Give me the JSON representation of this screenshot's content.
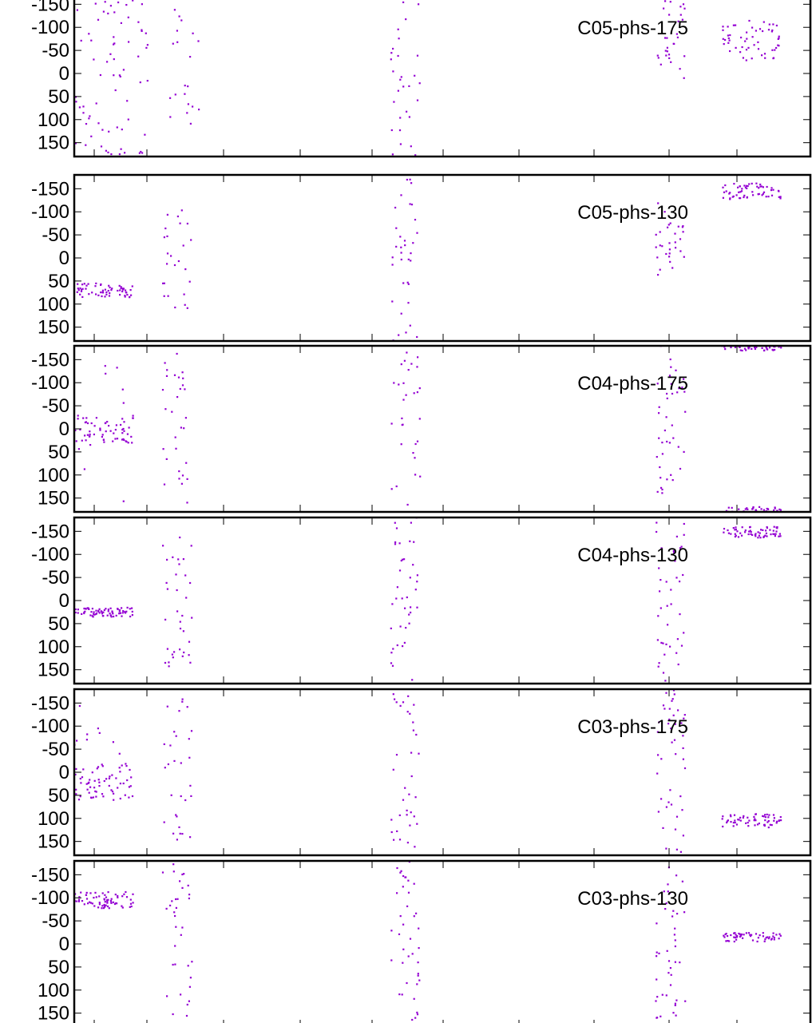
{
  "chart_data": [
    {
      "type": "scatter",
      "title": "C05-phs-175",
      "ylim": [
        180,
        -180
      ],
      "yticks": [
        -150,
        -100,
        -50,
        0,
        50,
        100,
        150
      ],
      "ytick_labels": [
        "-150",
        "-100",
        "-50",
        "0",
        "50",
        "100",
        "150"
      ],
      "xlim": [
        0,
        100
      ],
      "color": "#9400d3",
      "grid": false,
      "clusters": [
        {
          "x": [
            0,
            10
          ],
          "y_center": 0,
          "y_spread": 180,
          "count": 70
        },
        {
          "x": [
            13,
            17
          ],
          "y_center": -10,
          "y_spread": 150,
          "count": 20
        },
        {
          "x": [
            43,
            47
          ],
          "y_center": 0,
          "y_spread": 180,
          "count": 30
        },
        {
          "x": [
            79,
            83
          ],
          "y_center": -80,
          "y_spread": 90,
          "count": 30
        },
        {
          "x": [
            88,
            96
          ],
          "y_center": -70,
          "y_spread": 45,
          "count": 55
        }
      ]
    },
    {
      "type": "scatter",
      "title": "C05-phs-130",
      "ylim": [
        180,
        -180
      ],
      "yticks": [
        -150,
        -100,
        -50,
        0,
        50,
        100,
        150
      ],
      "ytick_labels": [
        "-150",
        "-100",
        "-50",
        "0",
        "50",
        "100",
        "150"
      ],
      "xlim": [
        0,
        100
      ],
      "color": "#9400d3",
      "grid": false,
      "clusters": [
        {
          "x": [
            0,
            8
          ],
          "y_center": 70,
          "y_spread": 15,
          "count": 60
        },
        {
          "x": [
            12,
            16
          ],
          "y_center": 0,
          "y_spread": 110,
          "count": 25
        },
        {
          "x": [
            43,
            47
          ],
          "y_center": 0,
          "y_spread": 180,
          "count": 35
        },
        {
          "x": [
            79,
            83
          ],
          "y_center": -40,
          "y_spread": 80,
          "count": 30
        },
        {
          "x": [
            88,
            96
          ],
          "y_center": -145,
          "y_spread": 18,
          "count": 60
        }
      ]
    },
    {
      "type": "scatter",
      "title": "C04-phs-175",
      "ylim": [
        180,
        -180
      ],
      "yticks": [
        -150,
        -100,
        -50,
        0,
        50,
        100,
        150
      ],
      "ytick_labels": [
        "-150",
        "-100",
        "-50",
        "0",
        "50",
        "100",
        "150"
      ],
      "xlim": [
        0,
        100
      ],
      "color": "#9400d3",
      "grid": false,
      "clusters": [
        {
          "x": [
            0,
            8
          ],
          "y_center": 0,
          "y_spread": 30,
          "count": 55
        },
        {
          "x": [
            0,
            8
          ],
          "y_center": 0,
          "y_spread": 180,
          "count": 15
        },
        {
          "x": [
            12,
            16
          ],
          "y_center": 0,
          "y_spread": 170,
          "count": 30
        },
        {
          "x": [
            43,
            47
          ],
          "y_center": 0,
          "y_spread": 180,
          "count": 30
        },
        {
          "x": [
            79,
            83
          ],
          "y_center": 0,
          "y_spread": 180,
          "count": 40
        },
        {
          "x": [
            88,
            96
          ],
          "y_center": -175,
          "y_spread": 6,
          "count": 35
        },
        {
          "x": [
            88,
            96
          ],
          "y_center": 175,
          "y_spread": 6,
          "count": 35
        }
      ]
    },
    {
      "type": "scatter",
      "title": "C04-phs-130",
      "ylim": [
        180,
        -180
      ],
      "yticks": [
        -150,
        -100,
        -50,
        0,
        50,
        100,
        150
      ],
      "ytick_labels": [
        "-150",
        "-100",
        "-50",
        "0",
        "50",
        "100",
        "150"
      ],
      "xlim": [
        0,
        100
      ],
      "color": "#9400d3",
      "grid": false,
      "clusters": [
        {
          "x": [
            0,
            8
          ],
          "y_center": 25,
          "y_spread": 10,
          "count": 70
        },
        {
          "x": [
            12,
            16
          ],
          "y_center": 0,
          "y_spread": 150,
          "count": 35
        },
        {
          "x": [
            43,
            47
          ],
          "y_center": 0,
          "y_spread": 180,
          "count": 40
        },
        {
          "x": [
            79,
            83
          ],
          "y_center": 0,
          "y_spread": 180,
          "count": 40
        },
        {
          "x": [
            88,
            96
          ],
          "y_center": -148,
          "y_spread": 12,
          "count": 60
        }
      ]
    },
    {
      "type": "scatter",
      "title": "C03-phs-175",
      "ylim": [
        180,
        -180
      ],
      "yticks": [
        -150,
        -100,
        -50,
        0,
        50,
        100,
        150
      ],
      "ytick_labels": [
        "-150",
        "-100",
        "-50",
        "0",
        "50",
        "100",
        "150"
      ],
      "xlim": [
        0,
        100
      ],
      "color": "#9400d3",
      "grid": false,
      "clusters": [
        {
          "x": [
            0,
            8
          ],
          "y_center": 20,
          "y_spread": 40,
          "count": 60
        },
        {
          "x": [
            0,
            8
          ],
          "y_center": -60,
          "y_spread": 120,
          "count": 12
        },
        {
          "x": [
            12,
            16
          ],
          "y_center": 0,
          "y_spread": 170,
          "count": 30
        },
        {
          "x": [
            43,
            47
          ],
          "y_center": 0,
          "y_spread": 180,
          "count": 35
        },
        {
          "x": [
            79,
            83
          ],
          "y_center": 0,
          "y_spread": 180,
          "count": 45
        },
        {
          "x": [
            88,
            96
          ],
          "y_center": 105,
          "y_spread": 15,
          "count": 60
        }
      ]
    },
    {
      "type": "scatter",
      "title": "C03-phs-130",
      "ylim": [
        180,
        -180
      ],
      "yticks": [
        -150,
        -100,
        -50,
        0,
        50,
        100,
        150
      ],
      "ytick_labels": [
        "-150",
        "-100",
        "-50",
        "0",
        "50",
        "100",
        "150"
      ],
      "xlim": [
        0,
        100
      ],
      "color": "#9400d3",
      "grid": false,
      "clusters": [
        {
          "x": [
            0,
            8
          ],
          "y_center": -95,
          "y_spread": 18,
          "count": 70
        },
        {
          "x": [
            12,
            16
          ],
          "y_center": 0,
          "y_spread": 180,
          "count": 35
        },
        {
          "x": [
            43,
            47
          ],
          "y_center": 0,
          "y_spread": 180,
          "count": 40
        },
        {
          "x": [
            79,
            83
          ],
          "y_center": 0,
          "y_spread": 180,
          "count": 45
        },
        {
          "x": [
            88,
            96
          ],
          "y_center": -15,
          "y_spread": 10,
          "count": 55
        }
      ]
    }
  ]
}
